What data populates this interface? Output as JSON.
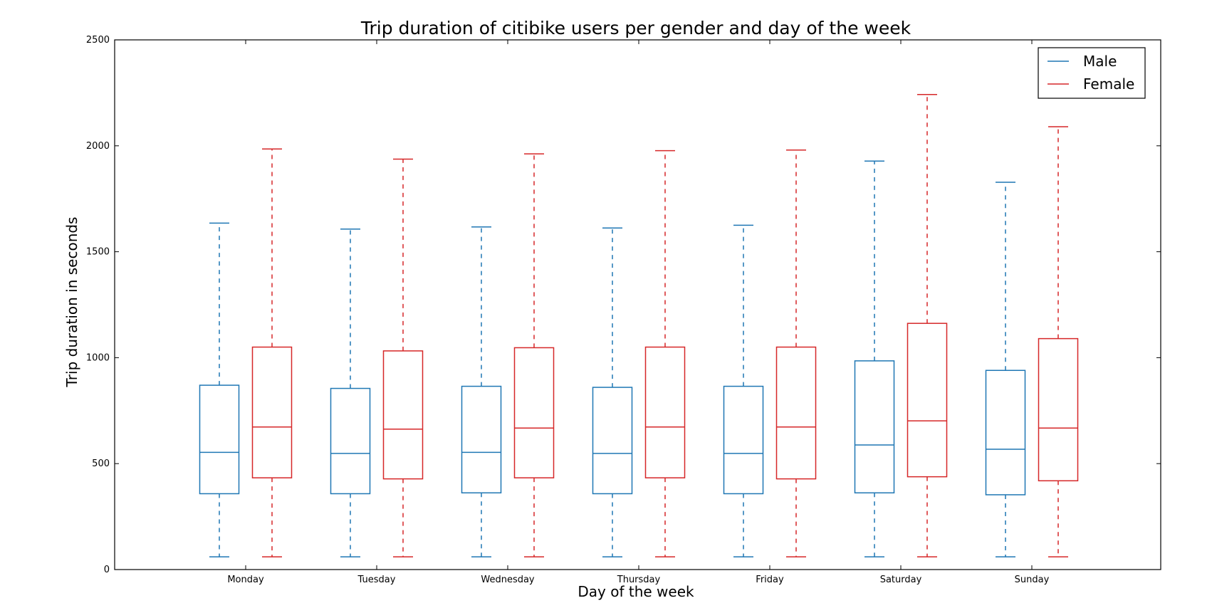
{
  "chart_data": {
    "type": "box",
    "title": "Trip duration of citibike users per gender and day of the week",
    "xlabel": "Day of the week",
    "ylabel": "Trip duration in seconds",
    "categories": [
      "Monday",
      "Tuesday",
      "Wednesday",
      "Thursday",
      "Friday",
      "Saturday",
      "Sunday"
    ],
    "ylim": [
      0,
      2500
    ],
    "yticks": [
      0,
      500,
      1000,
      1500,
      2000,
      2500
    ],
    "grid": false,
    "legend_position": "top-right",
    "whisker_style": "dashed",
    "series": [
      {
        "name": "Male",
        "color": "#1f77b4",
        "boxes": [
          {
            "whislo": 60,
            "q1": 358,
            "median": 553,
            "q3": 870,
            "whishi": 1635
          },
          {
            "whislo": 60,
            "q1": 358,
            "median": 548,
            "q3": 855,
            "whishi": 1607
          },
          {
            "whislo": 60,
            "q1": 362,
            "median": 553,
            "q3": 865,
            "whishi": 1617
          },
          {
            "whislo": 60,
            "q1": 358,
            "median": 548,
            "q3": 860,
            "whishi": 1612
          },
          {
            "whislo": 60,
            "q1": 358,
            "median": 548,
            "q3": 865,
            "whishi": 1625
          },
          {
            "whislo": 60,
            "q1": 362,
            "median": 588,
            "q3": 985,
            "whishi": 1928
          },
          {
            "whislo": 60,
            "q1": 353,
            "median": 568,
            "q3": 940,
            "whishi": 1828
          }
        ]
      },
      {
        "name": "Female",
        "color": "#d62728",
        "boxes": [
          {
            "whislo": 60,
            "q1": 433,
            "median": 673,
            "q3": 1050,
            "whishi": 1985
          },
          {
            "whislo": 60,
            "q1": 428,
            "median": 663,
            "q3": 1032,
            "whishi": 1937
          },
          {
            "whislo": 60,
            "q1": 433,
            "median": 668,
            "q3": 1047,
            "whishi": 1962
          },
          {
            "whislo": 60,
            "q1": 433,
            "median": 673,
            "q3": 1050,
            "whishi": 1977
          },
          {
            "whislo": 60,
            "q1": 428,
            "median": 673,
            "q3": 1050,
            "whishi": 1980
          },
          {
            "whislo": 60,
            "q1": 438,
            "median": 702,
            "q3": 1162,
            "whishi": 2242
          },
          {
            "whislo": 60,
            "q1": 419,
            "median": 668,
            "q3": 1090,
            "whishi": 2090
          }
        ]
      }
    ]
  }
}
